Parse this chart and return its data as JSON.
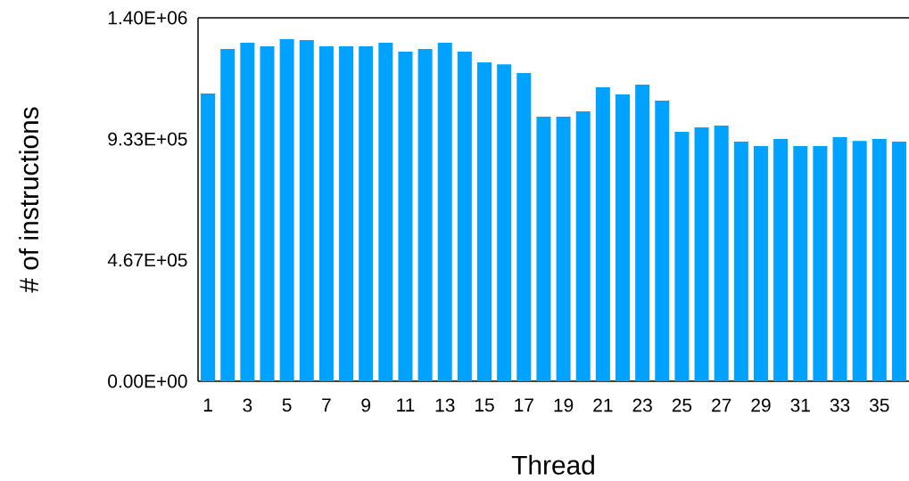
{
  "chart_data": {
    "type": "bar",
    "xlabel": "Thread",
    "ylabel": "# of instructions",
    "color": "#00a2ff",
    "categories": [
      "1",
      null,
      "3",
      null,
      "5",
      null,
      "7",
      null,
      "9",
      null,
      "11",
      null,
      "13",
      null,
      "15",
      null,
      "17",
      null,
      "19",
      null,
      "21",
      null,
      "23",
      null,
      "25",
      null,
      "27",
      null,
      "29",
      null,
      "31",
      null,
      "33",
      null,
      "35",
      null
    ],
    "values": [
      1108000,
      1280000,
      1304000,
      1290000,
      1318000,
      1314000,
      1290000,
      1290000,
      1290000,
      1304000,
      1270000,
      1280000,
      1304000,
      1270000,
      1228000,
      1221000,
      1187000,
      1019000,
      1019000,
      1040000,
      1132000,
      1105000,
      1143000,
      1081000,
      961000,
      978000,
      985000,
      923000,
      906000,
      933000,
      906000,
      906000,
      940000,
      926000,
      933000,
      923000
    ],
    "ylim": [
      0,
      1400000
    ],
    "yticks": [
      {
        "value": 0,
        "label": "0.00E+00"
      },
      {
        "value": 467000,
        "label": "4.67E+05"
      },
      {
        "value": 933000,
        "label": "9.33E+05"
      },
      {
        "value": 1400000,
        "label": "1.40E+06"
      }
    ],
    "grid": false
  }
}
